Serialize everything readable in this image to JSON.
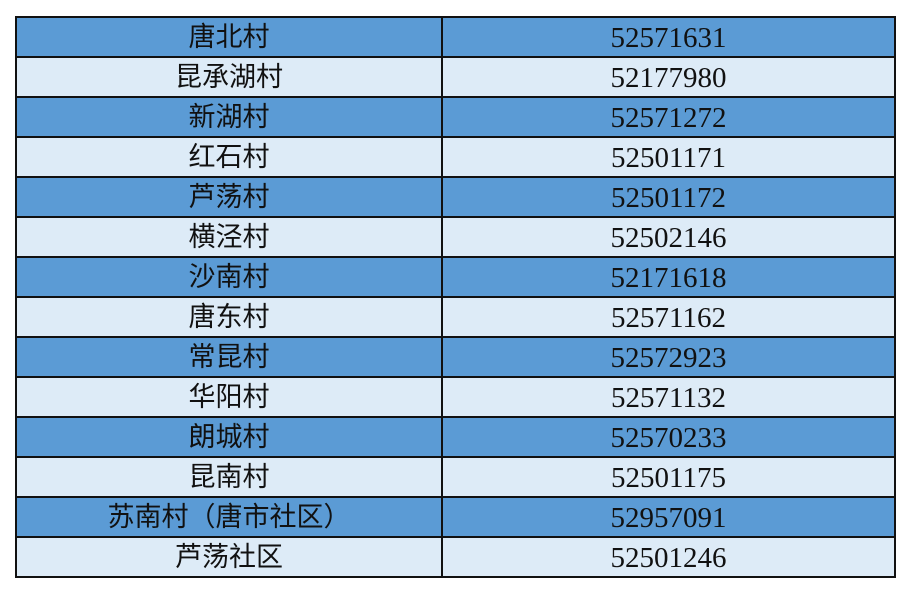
{
  "colors": {
    "row_dark": "#5b9bd5",
    "row_light": "#ddebf7",
    "border": "#111111"
  },
  "rows": [
    {
      "name": "唐北村",
      "phone": "52571631"
    },
    {
      "name": "昆承湖村",
      "phone": "52177980"
    },
    {
      "name": "新湖村",
      "phone": "52571272"
    },
    {
      "name": "红石村",
      "phone": "52501171"
    },
    {
      "name": "芦荡村",
      "phone": "52501172"
    },
    {
      "name": "横泾村",
      "phone": "52502146"
    },
    {
      "name": "沙南村",
      "phone": "52171618"
    },
    {
      "name": "唐东村",
      "phone": "52571162"
    },
    {
      "name": "常昆村",
      "phone": "52572923"
    },
    {
      "name": "华阳村",
      "phone": "52571132"
    },
    {
      "name": "朗城村",
      "phone": "52570233"
    },
    {
      "name": "昆南村",
      "phone": "52501175"
    },
    {
      "name": "苏南村（唐市社区）",
      "phone": "52957091"
    },
    {
      "name": "芦荡社区",
      "phone": "52501246"
    }
  ]
}
